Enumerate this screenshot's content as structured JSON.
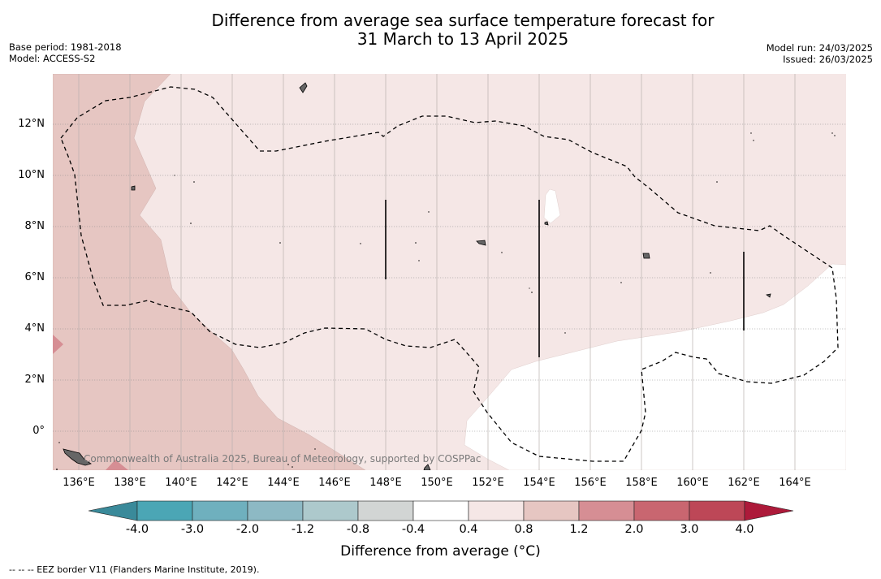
{
  "title_line1": "Difference from average sea surface temperature forecast for",
  "title_line2": "31 March to 13 April 2025",
  "meta_left": {
    "base_period": "Base period: 1981-2018",
    "model": "Model: ACCESS-S2"
  },
  "meta_right": {
    "model_run": "Model run: 24/03/2025",
    "issued": "Issued: 26/03/2025"
  },
  "lon_labels": [
    "136°E",
    "138°E",
    "140°E",
    "142°E",
    "144°E",
    "146°E",
    "148°E",
    "150°E",
    "152°E",
    "154°E",
    "156°E",
    "158°E",
    "160°E",
    "162°E",
    "164°E"
  ],
  "lat_labels": [
    "12°N",
    "10°N",
    "8°N",
    "6°N",
    "4°N",
    "2°N",
    "0°"
  ],
  "copyright": "Commonwealth of Australia 2025, Bureau of Meteorology, supported by COSPPac",
  "colorbar": {
    "labels": [
      "-4.0",
      "-3.0",
      "-2.0",
      "-1.2",
      "-0.8",
      "-0.4",
      "0.4",
      "0.8",
      "1.2",
      "2.0",
      "3.0",
      "4.0"
    ],
    "colors": [
      "#3a8a9a",
      "#4ba6b5",
      "#6fb0be",
      "#8db9c4",
      "#adc9cc",
      "#d2d5d4",
      "#ffffff",
      "#f5e7e6",
      "#e6c6c2",
      "#d68e94",
      "#c96670",
      "#bd4757",
      "#ad1a3a"
    ],
    "title": "Difference from average (°C)"
  },
  "footnote": "--  --  -- EEZ border V11 (Flanders Marine Institute, 2019).",
  "map_legend": {
    "0.4 to 0.8": "#f5e7e6",
    "0.8 to 1.2": "#e6c6c2",
    "1.2 to 2.0": "#d68e94",
    "-0.4 to 0.4": "#ffffff"
  }
}
